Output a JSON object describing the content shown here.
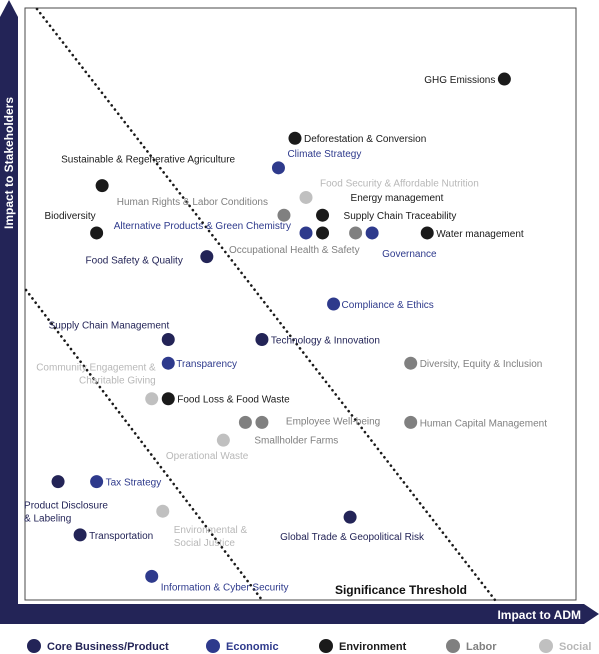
{
  "chart_data": {
    "type": "scatter",
    "title": "",
    "xlabel": "Impact to ADM",
    "ylabel": "Impact to Stakeholders",
    "xlim": [
      0,
      100
    ],
    "ylim": [
      0,
      100
    ],
    "grid": false,
    "threshold_label": "Significance Threshold",
    "legend_position": "bottom",
    "categories": [
      {
        "key": "core",
        "label": "Core Business/Product",
        "color": "#232457",
        "label_color": "#232457"
      },
      {
        "key": "economic",
        "label": "Economic",
        "color": "#2e3a8c",
        "label_color": "#2e3a8c"
      },
      {
        "key": "environment",
        "label": "Environment",
        "color": "#1a1a1a",
        "label_color": "#1a1a1a"
      },
      {
        "key": "labor",
        "label": "Labor",
        "color": "#808080",
        "label_color": "#808080"
      },
      {
        "key": "social",
        "label": "Social",
        "color": "#c0c0c0",
        "label_color": "#b8b8b8"
      }
    ],
    "points": [
      {
        "label": "GHG Emissions",
        "x": 87,
        "y": 88,
        "cat": "environment"
      },
      {
        "label": "Deforestation & Conversion",
        "x": 49,
        "y": 78,
        "cat": "environment"
      },
      {
        "label": "Climate Strategy",
        "x": 46,
        "y": 73,
        "cat": "economic"
      },
      {
        "label": "Sustainable & Regenerative Agriculture",
        "x": 14,
        "y": 70,
        "cat": "environment"
      },
      {
        "label": "Food Security & Affordable Nutrition",
        "x": 51,
        "y": 68,
        "cat": "social"
      },
      {
        "label": "Energy management",
        "x": 54,
        "y": 65,
        "cat": "environment"
      },
      {
        "label": "Human Rights & Labor Conditions",
        "x": 47,
        "y": 65,
        "cat": "labor"
      },
      {
        "label": "Supply Chain Traceability",
        "x": 54,
        "y": 62,
        "cat": "environment"
      },
      {
        "label": "Biodiversity",
        "x": 13,
        "y": 62,
        "cat": "environment"
      },
      {
        "label": "Alternative Products & Green Chemistry",
        "x": 51,
        "y": 62,
        "cat": "economic"
      },
      {
        "label": "Water management",
        "x": 73,
        "y": 62,
        "cat": "environment"
      },
      {
        "label": "Governance",
        "x": 63,
        "y": 62,
        "cat": "economic"
      },
      {
        "label": "Occupational Health & Safety",
        "x": 60,
        "y": 62,
        "cat": "labor"
      },
      {
        "label": "Food Safety & Quality",
        "x": 33,
        "y": 58,
        "cat": "core"
      },
      {
        "label": "Compliance & Ethics",
        "x": 56,
        "y": 50,
        "cat": "economic"
      },
      {
        "label": "Supply Chain Management",
        "x": 26,
        "y": 44,
        "cat": "core"
      },
      {
        "label": "Technology & Innovation",
        "x": 43,
        "y": 44,
        "cat": "core"
      },
      {
        "label": "Transparency",
        "x": 26,
        "y": 40,
        "cat": "economic"
      },
      {
        "label": "Diversity, Equity & Inclusion",
        "x": 70,
        "y": 40,
        "cat": "labor"
      },
      {
        "label": "Community Engagement & Charitable Giving",
        "x": 23,
        "y": 34,
        "cat": "social"
      },
      {
        "label": "Food Loss & Food Waste",
        "x": 26,
        "y": 34,
        "cat": "environment"
      },
      {
        "label": "Employee Well-being",
        "x": 43,
        "y": 30,
        "cat": "labor"
      },
      {
        "label": "Smallholder Farms",
        "x": 40,
        "y": 30,
        "cat": "labor"
      },
      {
        "label": "Human Capital Management",
        "x": 70,
        "y": 30,
        "cat": "labor"
      },
      {
        "label": "Operational Waste",
        "x": 36,
        "y": 27,
        "cat": "social"
      },
      {
        "label": "Product Disclosure & Labeling",
        "x": 6,
        "y": 20,
        "cat": "core"
      },
      {
        "label": "Tax Strategy",
        "x": 13,
        "y": 20,
        "cat": "economic"
      },
      {
        "label": "Environmental & Social Justice",
        "x": 25,
        "y": 15,
        "cat": "social"
      },
      {
        "label": "Global Trade & Geopolitical Risk",
        "x": 59,
        "y": 14,
        "cat": "core"
      },
      {
        "label": "Transportation",
        "x": 10,
        "y": 11,
        "cat": "core"
      },
      {
        "label": "Information & Cyber Security",
        "x": 23,
        "y": 4,
        "cat": "economic"
      }
    ]
  }
}
